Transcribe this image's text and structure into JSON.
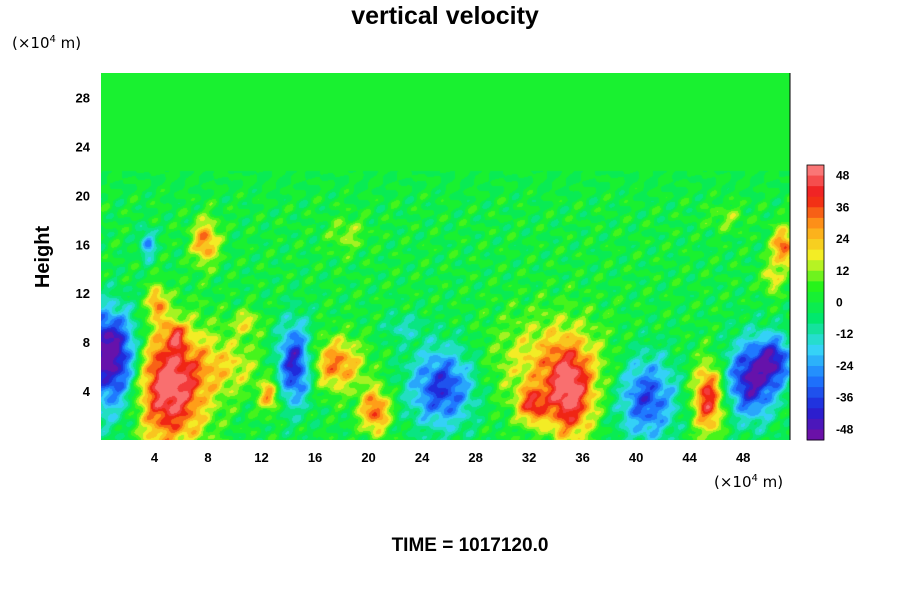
{
  "chart_data": {
    "type": "heatmap",
    "title": "vertical velocity",
    "ylabel": "Height",
    "xlabel": "",
    "x_unit": {
      "prefix": "(×10",
      "exp": "4",
      "suffix": " m)"
    },
    "y_unit": {
      "prefix": "(×10",
      "exp": "4",
      "suffix": " m)"
    },
    "xlim": [
      0,
      51.5
    ],
    "ylim": [
      0,
      30
    ],
    "x_ticks": [
      4,
      8,
      12,
      16,
      20,
      24,
      28,
      32,
      36,
      40,
      44,
      48
    ],
    "y_ticks": [
      4,
      8,
      12,
      16,
      20,
      24,
      28
    ],
    "color_range": [
      -52,
      52
    ],
    "colorbar_ticks": [
      48,
      36,
      24,
      12,
      0,
      -12,
      -24,
      -36,
      -48
    ],
    "colormap": [
      "#7a0e9e",
      "#2020d6",
      "#1e78ff",
      "#36d8f6",
      "#00e86a",
      "#22f41a",
      "#f2f226",
      "#ff9c18",
      "#ee1414",
      "#fc8a8a"
    ],
    "background_value": 0,
    "features": [
      {
        "x": 5,
        "y": 3.8,
        "sx": 2.0,
        "sy": 3.2,
        "value": 48
      },
      {
        "x": 4.4,
        "y": 6.8,
        "sx": 3.2,
        "sy": 2.4,
        "value": 14
      },
      {
        "x": 0.6,
        "y": 7.5,
        "sx": 1.6,
        "sy": 2.3,
        "value": -50
      },
      {
        "x": 1.4,
        "y": 4.5,
        "sx": 1.6,
        "sy": 2.8,
        "value": -26
      },
      {
        "x": 9.8,
        "y": 6.0,
        "sx": 1.6,
        "sy": 1.6,
        "value": 14
      },
      {
        "x": 14.5,
        "y": 6.2,
        "sx": 0.9,
        "sy": 2.3,
        "value": -44
      },
      {
        "x": 17.6,
        "y": 6.2,
        "sx": 1.4,
        "sy": 1.5,
        "value": 32
      },
      {
        "x": 20.5,
        "y": 2.4,
        "sx": 0.8,
        "sy": 1.3,
        "value": 36
      },
      {
        "x": 12.6,
        "y": 3.6,
        "sx": 0.5,
        "sy": 0.9,
        "value": 30
      },
      {
        "x": 25.5,
        "y": 4.3,
        "sx": 1.7,
        "sy": 2.3,
        "value": -38
      },
      {
        "x": 33.6,
        "y": 6.2,
        "sx": 3.0,
        "sy": 2.8,
        "value": 22
      },
      {
        "x": 35.0,
        "y": 3.6,
        "sx": 1.2,
        "sy": 2.6,
        "value": 42
      },
      {
        "x": 32.2,
        "y": 2.8,
        "sx": 0.7,
        "sy": 1.0,
        "value": 32
      },
      {
        "x": 40.8,
        "y": 3.4,
        "sx": 1.5,
        "sy": 2.4,
        "value": -36
      },
      {
        "x": 45.4,
        "y": 3.4,
        "sx": 0.8,
        "sy": 2.0,
        "value": 44
      },
      {
        "x": 48.6,
        "y": 4.9,
        "sx": 1.3,
        "sy": 2.2,
        "value": -46
      },
      {
        "x": 50.4,
        "y": 6.6,
        "sx": 0.9,
        "sy": 1.4,
        "value": -34
      },
      {
        "x": 7.8,
        "y": 16.2,
        "sx": 0.7,
        "sy": 1.3,
        "value": 32
      },
      {
        "x": 4.2,
        "y": 11.2,
        "sx": 0.5,
        "sy": 1.0,
        "value": 28
      },
      {
        "x": 5.6,
        "y": 8.6,
        "sx": 0.4,
        "sy": 0.7,
        "value": 26
      },
      {
        "x": 3.5,
        "y": 16.0,
        "sx": 0.4,
        "sy": 0.9,
        "value": -26
      },
      {
        "x": 51.0,
        "y": 15.8,
        "sx": 0.6,
        "sy": 1.1,
        "value": 36
      },
      {
        "x": 50.2,
        "y": 13.2,
        "sx": 0.5,
        "sy": 0.9,
        "value": 20
      },
      {
        "x": 18.4,
        "y": 16.8,
        "sx": 1.0,
        "sy": 1.0,
        "value": 12
      },
      {
        "x": 46.8,
        "y": 18.2,
        "sx": 1.0,
        "sy": 0.8,
        "value": 10
      },
      {
        "x": 22.6,
        "y": 9.2,
        "sx": 1.0,
        "sy": 0.8,
        "value": -12
      },
      {
        "x": 10.9,
        "y": 9.6,
        "sx": 0.7,
        "sy": 0.7,
        "value": 18
      }
    ]
  },
  "footer": {
    "time_label": "TIME = 1017120.0"
  }
}
